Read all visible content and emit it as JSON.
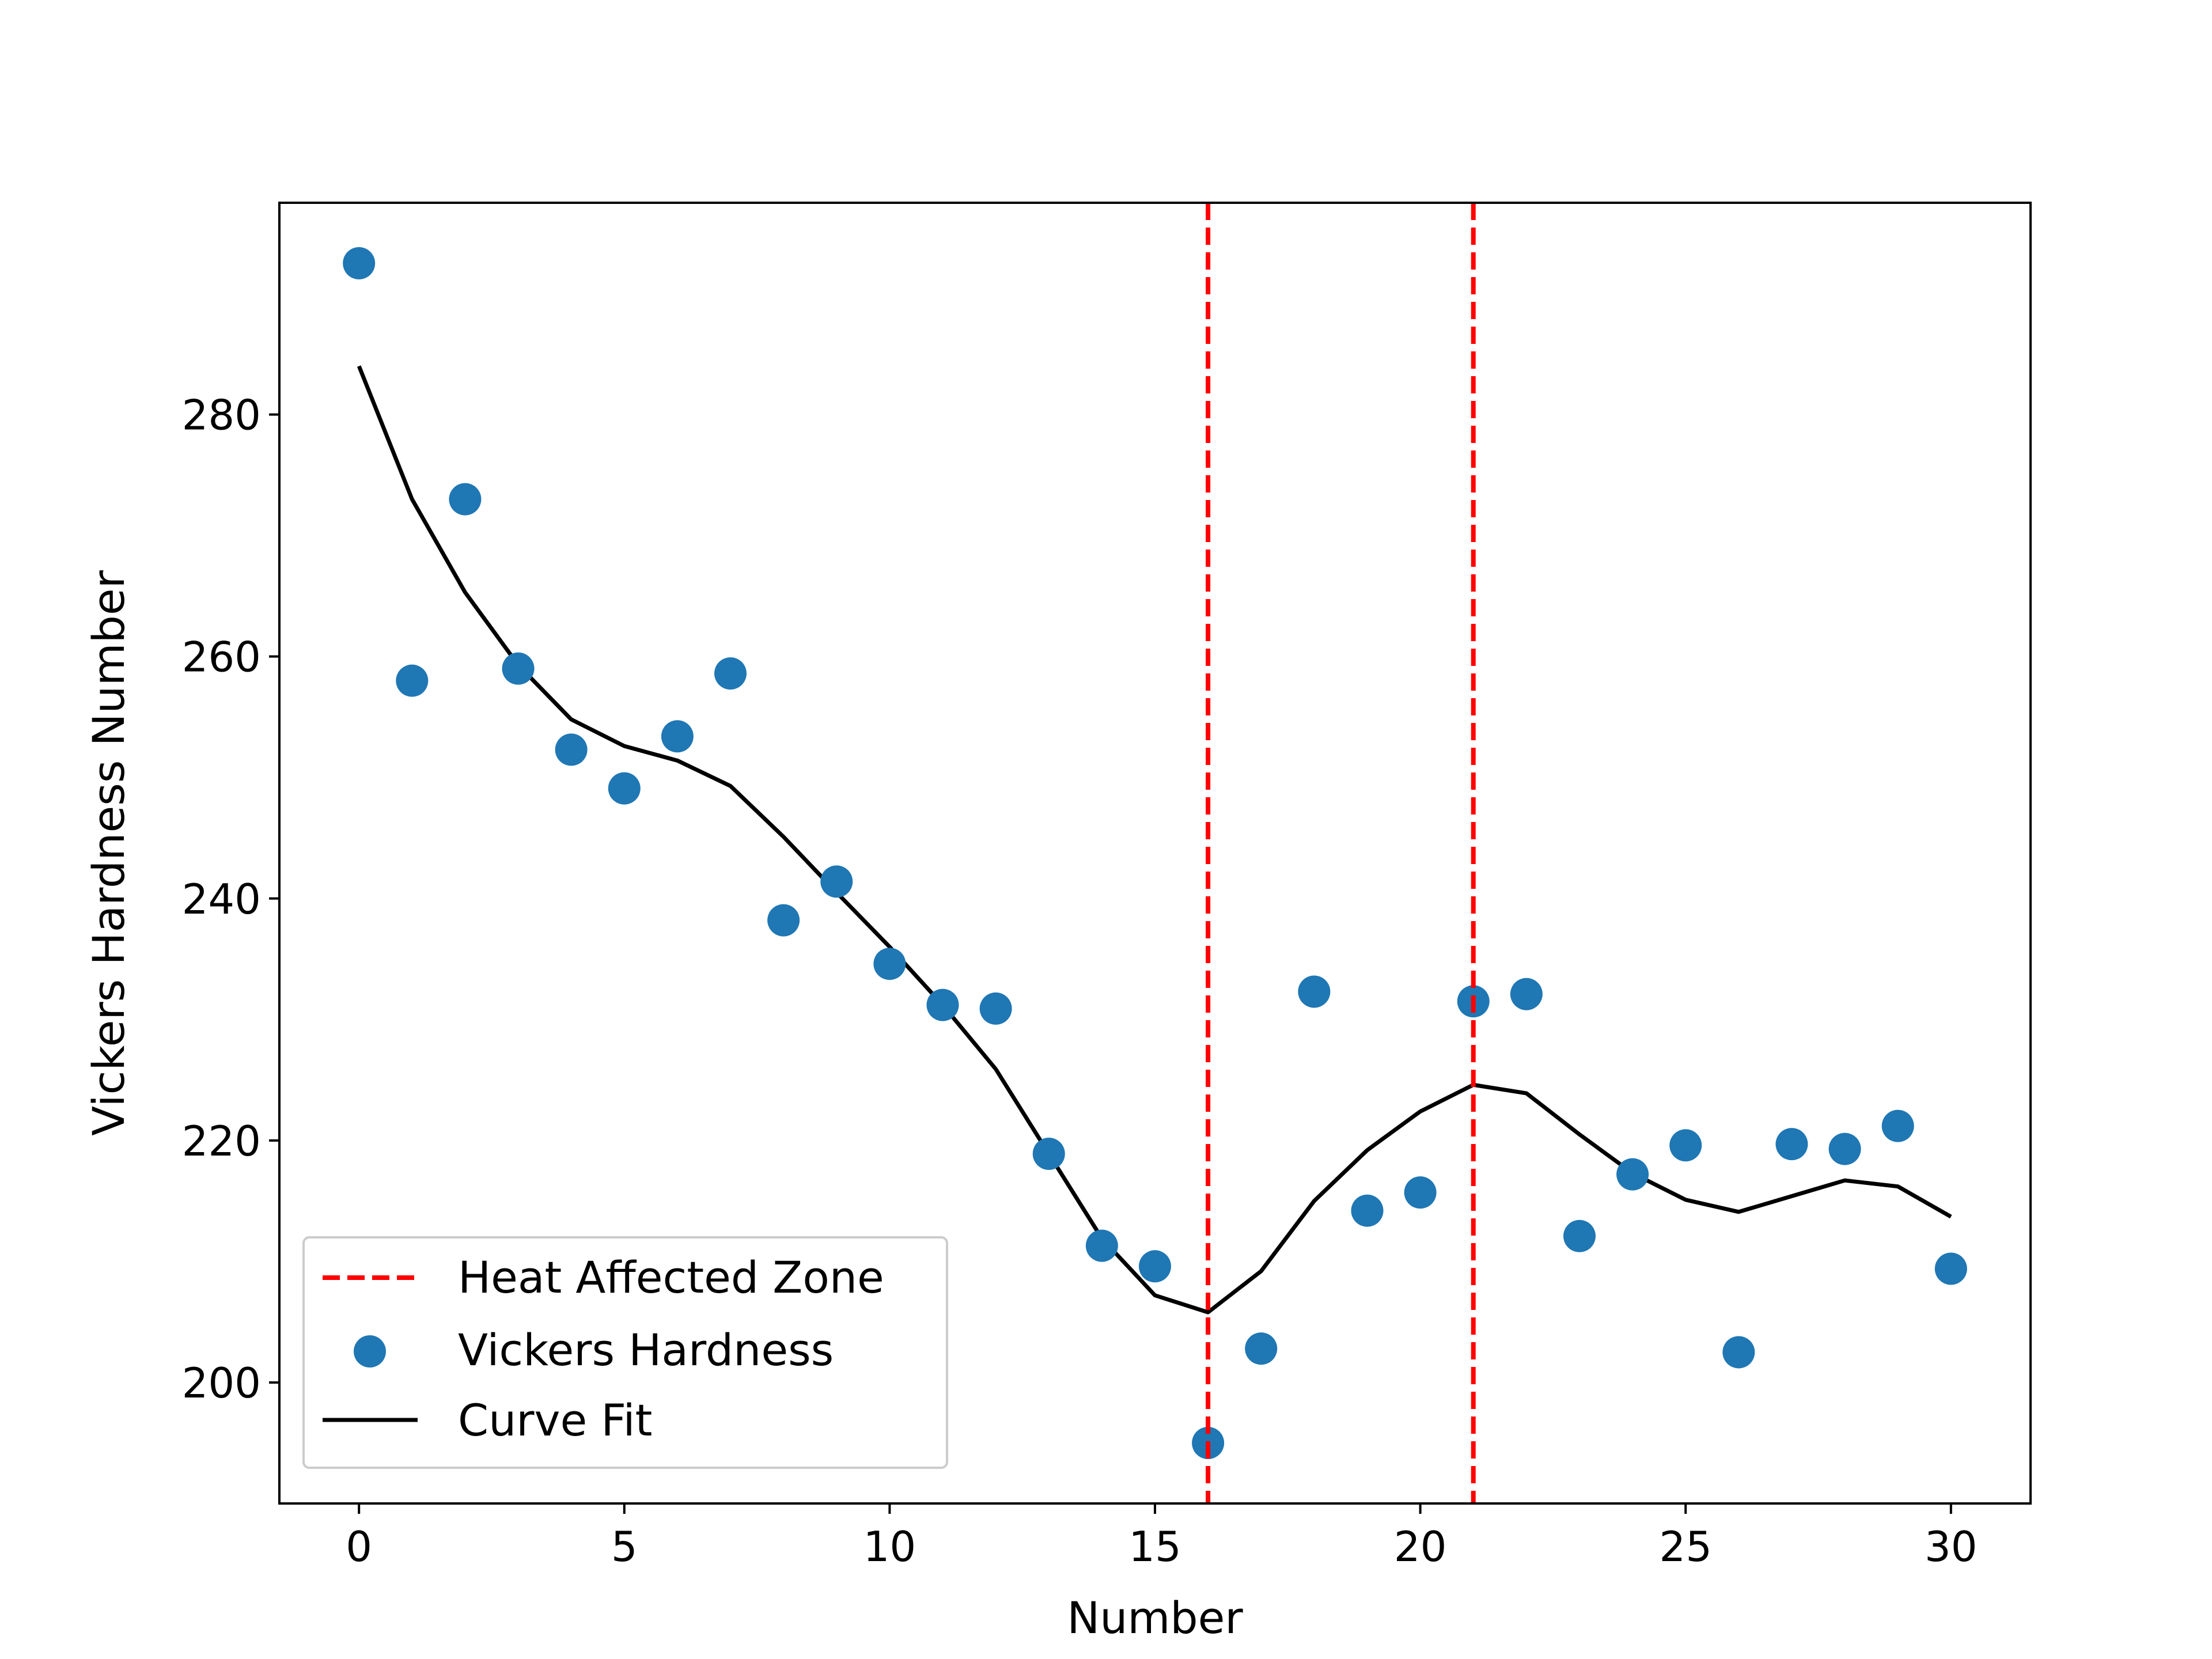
{
  "chart_data": {
    "type": "scatter",
    "title": "",
    "xlabel": "Number",
    "ylabel": "Vickers Hardness Number",
    "xlim": [
      -1.5,
      31.5
    ],
    "ylim": [
      190,
      297.5
    ],
    "xticks": [
      0,
      5,
      10,
      15,
      20,
      25,
      30
    ],
    "yticks": [
      200,
      220,
      240,
      260,
      280
    ],
    "grid": false,
    "legend_position": "lower-left",
    "series": [
      {
        "name": "Vickers Hardness",
        "kind": "scatter",
        "color": "#1f77b4",
        "x": [
          0,
          1,
          2,
          3,
          4,
          5,
          6,
          7,
          8,
          9,
          10,
          11,
          12,
          13,
          14,
          15,
          16,
          17,
          18,
          19,
          20,
          21,
          22,
          23,
          24,
          25,
          26,
          27,
          28,
          29,
          30
        ],
        "y": [
          292.5,
          258,
          273,
          259,
          252.3,
          249.1,
          253.4,
          258.6,
          238.2,
          241.4,
          234.6,
          231.2,
          230.9,
          218.9,
          211.3,
          209.6,
          195,
          202.8,
          232.3,
          214.2,
          215.7,
          231.5,
          232.1,
          212.1,
          217.2,
          219.6,
          202.5,
          219.7,
          219.3,
          221.2,
          209.4
        ]
      },
      {
        "name": "Curve Fit",
        "kind": "line",
        "color": "#000000",
        "x": [
          0,
          1,
          2,
          3,
          4,
          5,
          6,
          7,
          8,
          9,
          10,
          11,
          12,
          13,
          14,
          15,
          16,
          17,
          18,
          19,
          20,
          21,
          22,
          23,
          24,
          25,
          26,
          27,
          28,
          29,
          30
        ],
        "y": [
          284,
          273,
          265.3,
          259.3,
          254.8,
          252.6,
          251.4,
          249.3,
          245.1,
          240.5,
          236,
          231.2,
          225.9,
          218.9,
          211.9,
          207.2,
          205.8,
          209.2,
          215,
          219.2,
          222.4,
          224.6,
          223.9,
          220.5,
          217.3,
          215.1,
          214.1,
          215.4,
          216.7,
          216.2,
          213.7
        ]
      },
      {
        "name": "Heat Affected Zone",
        "kind": "vline",
        "color": "#ff0000",
        "x": [
          16,
          21
        ]
      }
    ]
  }
}
